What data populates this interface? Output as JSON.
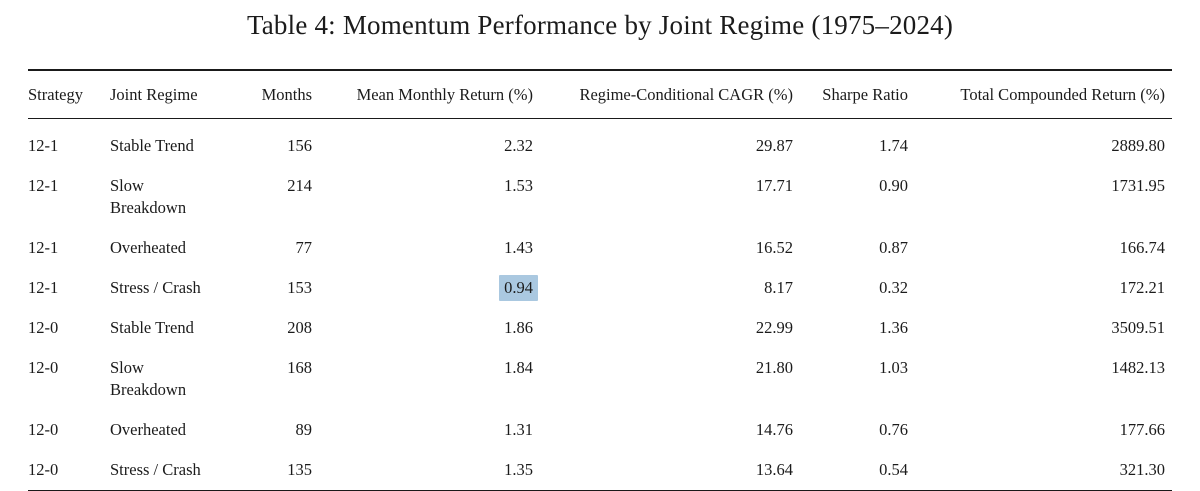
{
  "title": "Table 4: Momentum Performance by Joint Regime (1975–2024)",
  "table": {
    "columns": [
      {
        "key": "strategy",
        "label": "Strategy",
        "align": "left"
      },
      {
        "key": "joint_regime",
        "label": "Joint Regime",
        "align": "left"
      },
      {
        "key": "months",
        "label": "Months",
        "align": "right"
      },
      {
        "key": "mean_monthly_return_pct",
        "label": "Mean Monthly Return (%)",
        "align": "right"
      },
      {
        "key": "regime_conditional_cagr_pct",
        "label": "Regime-Conditional CAGR (%)",
        "align": "right"
      },
      {
        "key": "sharpe_ratio",
        "label": "Sharpe Ratio",
        "align": "right"
      },
      {
        "key": "total_compounded_return_pct",
        "label": "Total Compounded Return (%)",
        "align": "right"
      }
    ],
    "rows": [
      {
        "strategy": "12-1",
        "joint_regime": "Stable Trend",
        "months": "156",
        "mean_monthly_return_pct": "2.32",
        "regime_conditional_cagr_pct": "29.87",
        "sharpe_ratio": "1.74",
        "total_compounded_return_pct": "2889.80"
      },
      {
        "strategy": "12-1",
        "joint_regime": "Slow Breakdown",
        "months": "214",
        "mean_monthly_return_pct": "1.53",
        "regime_conditional_cagr_pct": "17.71",
        "sharpe_ratio": "0.90",
        "total_compounded_return_pct": "1731.95"
      },
      {
        "strategy": "12-1",
        "joint_regime": "Overheated",
        "months": "77",
        "mean_monthly_return_pct": "1.43",
        "regime_conditional_cagr_pct": "16.52",
        "sharpe_ratio": "0.87",
        "total_compounded_return_pct": "166.74"
      },
      {
        "strategy": "12-1",
        "joint_regime": "Stress / Crash",
        "months": "153",
        "mean_monthly_return_pct": "0.94",
        "regime_conditional_cagr_pct": "8.17",
        "sharpe_ratio": "0.32",
        "total_compounded_return_pct": "172.21"
      },
      {
        "strategy": "12-0",
        "joint_regime": "Stable Trend",
        "months": "208",
        "mean_monthly_return_pct": "1.86",
        "regime_conditional_cagr_pct": "22.99",
        "sharpe_ratio": "1.36",
        "total_compounded_return_pct": "3509.51"
      },
      {
        "strategy": "12-0",
        "joint_regime": "Slow Breakdown",
        "months": "168",
        "mean_monthly_return_pct": "1.84",
        "regime_conditional_cagr_pct": "21.80",
        "sharpe_ratio": "1.03",
        "total_compounded_return_pct": "1482.13"
      },
      {
        "strategy": "12-0",
        "joint_regime": "Overheated",
        "months": "89",
        "mean_monthly_return_pct": "1.31",
        "regime_conditional_cagr_pct": "14.76",
        "sharpe_ratio": "0.76",
        "total_compounded_return_pct": "177.66"
      },
      {
        "strategy": "12-0",
        "joint_regime": "Stress / Crash",
        "months": "135",
        "mean_monthly_return_pct": "1.35",
        "regime_conditional_cagr_pct": "13.64",
        "sharpe_ratio": "0.54",
        "total_compounded_return_pct": "321.30"
      }
    ],
    "highlight": {
      "row_index": 3,
      "column_key": "mean_monthly_return_pct",
      "color": "#aac8e0"
    }
  }
}
